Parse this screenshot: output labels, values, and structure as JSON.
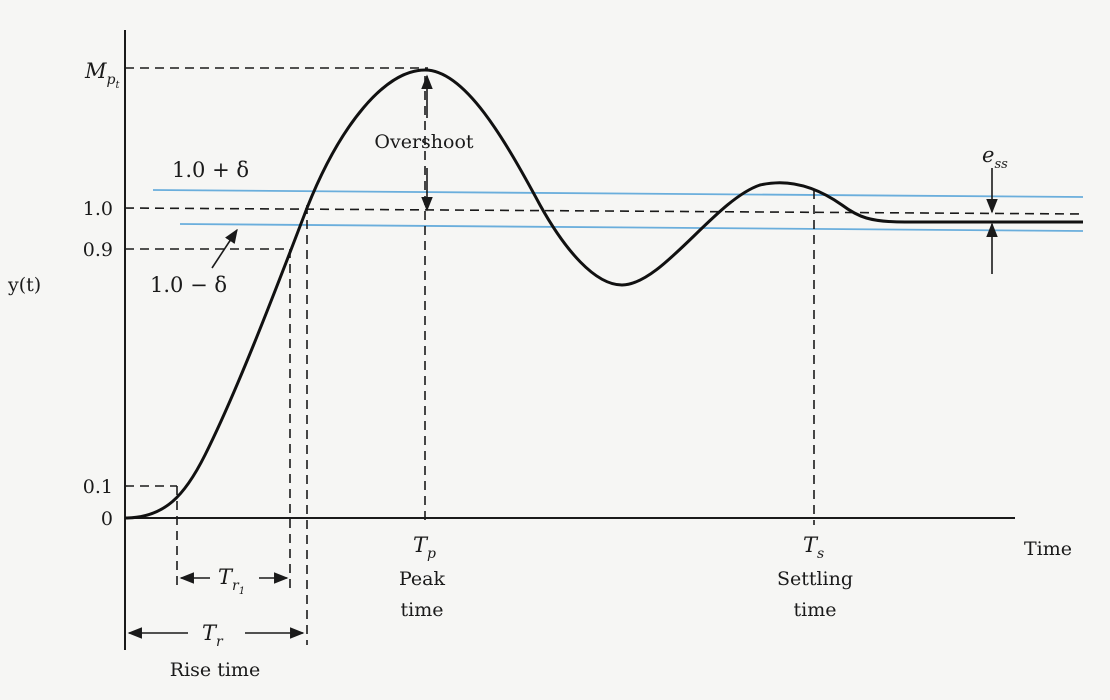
{
  "y_axis": {
    "label": "y(t)",
    "ticks": {
      "mp": "M",
      "mp_sub": "p",
      "mp_subsub": "t",
      "one": "1.0",
      "ninety": "0.9",
      "ten": "0.1",
      "zero": "0"
    }
  },
  "x_axis": {
    "label": "Time"
  },
  "band": {
    "upper": "1.0 + δ",
    "lower": "1.0 − δ"
  },
  "annotations": {
    "overshoot": "Overshoot",
    "ess_e": "e",
    "ess_sub": "ss"
  },
  "markers": {
    "tp": {
      "sym": "T",
      "sub": "p",
      "name1": "Peak",
      "name2": "time"
    },
    "ts": {
      "sym": "T",
      "sub": "s",
      "name1": "Settling",
      "name2": "time"
    },
    "tr1": {
      "sym": "T",
      "sub": "r",
      "subsub": "1"
    },
    "tr": {
      "sym": "T",
      "sub": "r",
      "name": "Rise time"
    }
  },
  "colors": {
    "band": "#6aaedc",
    "curve": "#111111",
    "background": "#f6f6f4"
  }
}
